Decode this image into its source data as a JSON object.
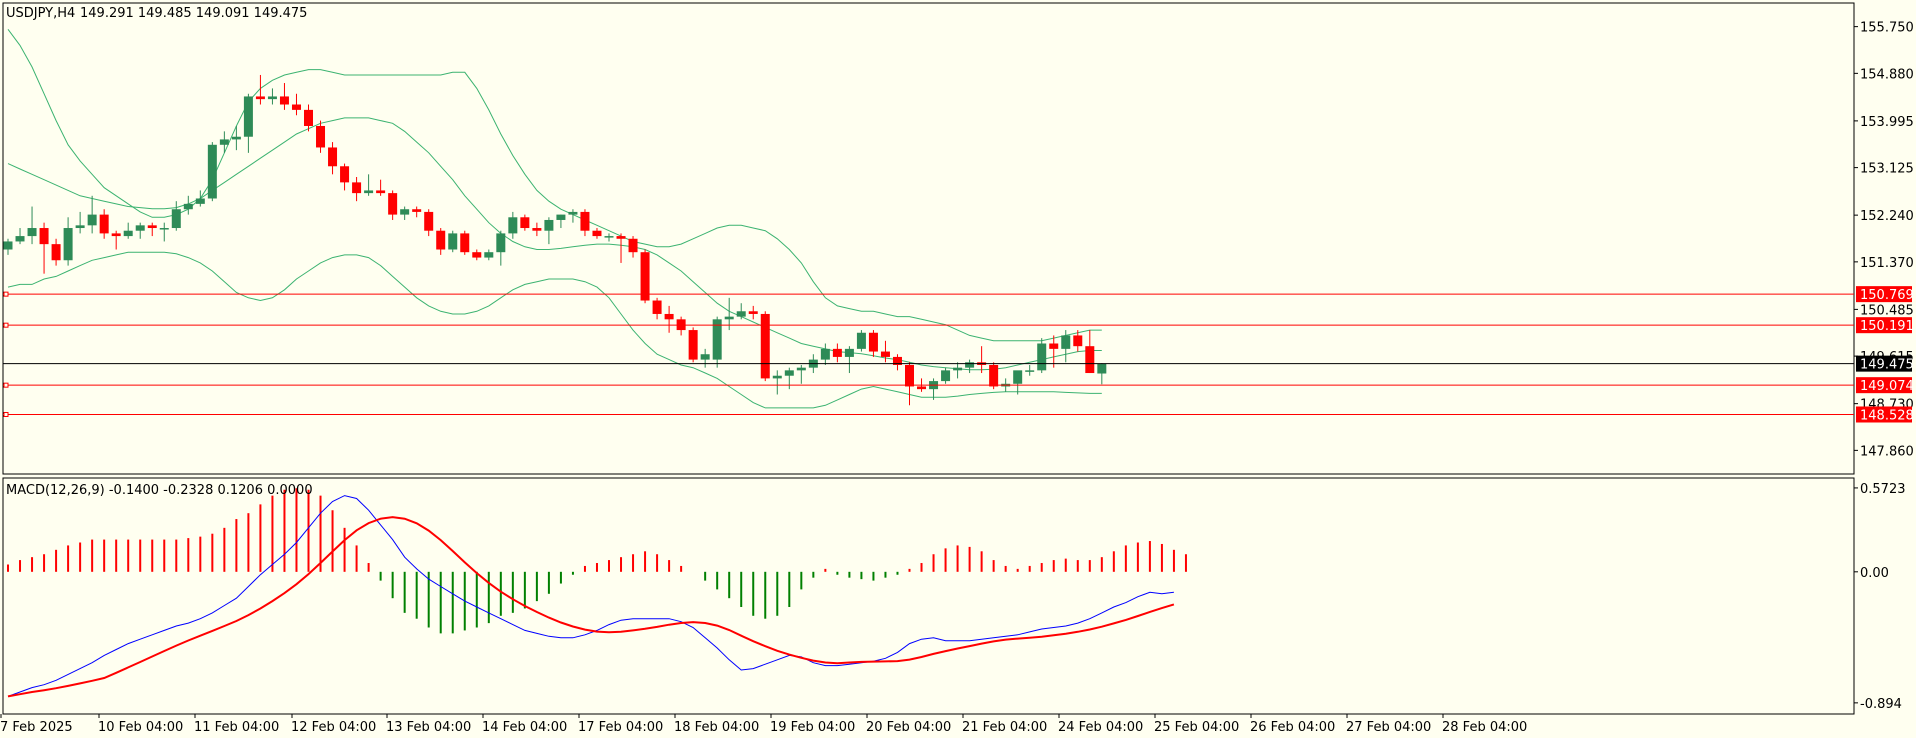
{
  "chart_data": {
    "type": "candlestick",
    "symbol_label": "USDJPY,H4",
    "ohlc_header": "149.291 149.485 149.091 149.475",
    "price_axis_ticks": [
      "155.750",
      "154.880",
      "153.995",
      "153.125",
      "152.240",
      "151.370",
      "150.485",
      "149.615",
      "148.730",
      "147.860"
    ],
    "price_axis_range": [
      147.42,
      156.19
    ],
    "current_price": {
      "label": "149.475",
      "value": 149.475
    },
    "horizontal_levels": [
      {
        "label": "150.769",
        "value": 150.769
      },
      {
        "label": "150.191",
        "value": 150.191
      },
      {
        "label": "149.074",
        "value": 149.074
      },
      {
        "label": "148.528",
        "value": 148.528
      }
    ],
    "time_axis_labels": [
      "7 Feb 2025",
      "10 Feb 04:00",
      "11 Feb 04:00",
      "12 Feb 04:00",
      "13 Feb 04:00",
      "14 Feb 04:00",
      "17 Feb 04:00",
      "18 Feb 04:00",
      "19 Feb 04:00",
      "20 Feb 04:00",
      "21 Feb 04:00",
      "24 Feb 04:00",
      "25 Feb 04:00",
      "26 Feb 04:00",
      "27 Feb 04:00",
      "28 Feb 04:00"
    ],
    "candles": [
      {
        "o": 151.6,
        "h": 151.8,
        "l": 151.5,
        "c": 151.75
      },
      {
        "o": 151.75,
        "h": 152.0,
        "l": 151.7,
        "c": 151.85
      },
      {
        "o": 151.85,
        "h": 152.4,
        "l": 151.7,
        "c": 152.0
      },
      {
        "o": 152.0,
        "h": 152.1,
        "l": 151.15,
        "c": 151.7
      },
      {
        "o": 151.7,
        "h": 151.8,
        "l": 151.3,
        "c": 151.4
      },
      {
        "o": 151.4,
        "h": 152.2,
        "l": 151.3,
        "c": 152.0
      },
      {
        "o": 152.0,
        "h": 152.3,
        "l": 151.9,
        "c": 152.05
      },
      {
        "o": 152.05,
        "h": 152.6,
        "l": 151.9,
        "c": 152.25
      },
      {
        "o": 152.25,
        "h": 152.35,
        "l": 151.8,
        "c": 151.9
      },
      {
        "o": 151.9,
        "h": 151.95,
        "l": 151.6,
        "c": 151.85
      },
      {
        "o": 151.85,
        "h": 152.1,
        "l": 151.8,
        "c": 151.95
      },
      {
        "o": 151.95,
        "h": 152.1,
        "l": 151.8,
        "c": 152.05
      },
      {
        "o": 152.05,
        "h": 152.1,
        "l": 151.85,
        "c": 152.0
      },
      {
        "o": 152.0,
        "h": 152.1,
        "l": 151.75,
        "c": 152.0
      },
      {
        "o": 152.0,
        "h": 152.5,
        "l": 151.95,
        "c": 152.35
      },
      {
        "o": 152.35,
        "h": 152.6,
        "l": 152.25,
        "c": 152.45
      },
      {
        "o": 152.45,
        "h": 152.7,
        "l": 152.4,
        "c": 152.55
      },
      {
        "o": 152.55,
        "h": 153.6,
        "l": 152.5,
        "c": 153.55
      },
      {
        "o": 153.55,
        "h": 153.8,
        "l": 153.4,
        "c": 153.65
      },
      {
        "o": 153.65,
        "h": 153.9,
        "l": 153.45,
        "c": 153.7
      },
      {
        "o": 153.7,
        "h": 154.5,
        "l": 153.4,
        "c": 154.45
      },
      {
        "o": 154.45,
        "h": 154.85,
        "l": 154.3,
        "c": 154.4
      },
      {
        "o": 154.4,
        "h": 154.6,
        "l": 154.3,
        "c": 154.45
      },
      {
        "o": 154.45,
        "h": 154.7,
        "l": 154.2,
        "c": 154.3
      },
      {
        "o": 154.3,
        "h": 154.5,
        "l": 154.1,
        "c": 154.2
      },
      {
        "o": 154.2,
        "h": 154.3,
        "l": 153.8,
        "c": 153.9
      },
      {
        "o": 153.9,
        "h": 154.0,
        "l": 153.4,
        "c": 153.5
      },
      {
        "o": 153.5,
        "h": 153.6,
        "l": 153.0,
        "c": 153.15
      },
      {
        "o": 153.15,
        "h": 153.2,
        "l": 152.7,
        "c": 152.85
      },
      {
        "o": 152.85,
        "h": 152.95,
        "l": 152.5,
        "c": 152.65
      },
      {
        "o": 152.65,
        "h": 153.0,
        "l": 152.6,
        "c": 152.7
      },
      {
        "o": 152.7,
        "h": 152.9,
        "l": 152.6,
        "c": 152.65
      },
      {
        "o": 152.65,
        "h": 152.7,
        "l": 152.15,
        "c": 152.25
      },
      {
        "o": 152.25,
        "h": 152.4,
        "l": 152.15,
        "c": 152.35
      },
      {
        "o": 152.35,
        "h": 152.4,
        "l": 152.2,
        "c": 152.3
      },
      {
        "o": 152.3,
        "h": 152.35,
        "l": 151.85,
        "c": 151.95
      },
      {
        "o": 151.95,
        "h": 152.0,
        "l": 151.5,
        "c": 151.6
      },
      {
        "o": 151.6,
        "h": 151.95,
        "l": 151.55,
        "c": 151.9
      },
      {
        "o": 151.9,
        "h": 151.95,
        "l": 151.5,
        "c": 151.55
      },
      {
        "o": 151.55,
        "h": 151.6,
        "l": 151.4,
        "c": 151.45
      },
      {
        "o": 151.45,
        "h": 151.6,
        "l": 151.4,
        "c": 151.55
      },
      {
        "o": 151.55,
        "h": 151.95,
        "l": 151.3,
        "c": 151.9
      },
      {
        "o": 151.9,
        "h": 152.3,
        "l": 151.8,
        "c": 152.2
      },
      {
        "o": 152.2,
        "h": 152.25,
        "l": 151.95,
        "c": 152.0
      },
      {
        "o": 152.0,
        "h": 152.1,
        "l": 151.85,
        "c": 151.95
      },
      {
        "o": 151.95,
        "h": 152.2,
        "l": 151.7,
        "c": 152.15
      },
      {
        "o": 152.15,
        "h": 152.25,
        "l": 152.0,
        "c": 152.25
      },
      {
        "o": 152.25,
        "h": 152.35,
        "l": 152.1,
        "c": 152.3
      },
      {
        "o": 152.3,
        "h": 152.35,
        "l": 151.85,
        "c": 151.95
      },
      {
        "o": 151.95,
        "h": 152.0,
        "l": 151.8,
        "c": 151.85
      },
      {
        "o": 151.85,
        "h": 151.9,
        "l": 151.75,
        "c": 151.85
      },
      {
        "o": 151.85,
        "h": 151.9,
        "l": 151.35,
        "c": 151.8
      },
      {
        "o": 151.8,
        "h": 151.85,
        "l": 151.45,
        "c": 151.55
      },
      {
        "o": 151.55,
        "h": 151.6,
        "l": 150.6,
        "c": 150.65
      },
      {
        "o": 150.65,
        "h": 150.7,
        "l": 150.3,
        "c": 150.4
      },
      {
        "o": 150.4,
        "h": 150.55,
        "l": 150.05,
        "c": 150.3
      },
      {
        "o": 150.3,
        "h": 150.35,
        "l": 150.0,
        "c": 150.1
      },
      {
        "o": 150.1,
        "h": 150.15,
        "l": 149.5,
        "c": 149.55
      },
      {
        "o": 149.55,
        "h": 149.75,
        "l": 149.4,
        "c": 149.65
      },
      {
        "o": 149.55,
        "h": 150.35,
        "l": 149.4,
        "c": 150.3
      },
      {
        "o": 150.3,
        "h": 150.7,
        "l": 150.1,
        "c": 150.35
      },
      {
        "o": 150.35,
        "h": 150.6,
        "l": 150.3,
        "c": 150.45
      },
      {
        "o": 150.45,
        "h": 150.55,
        "l": 150.3,
        "c": 150.4
      },
      {
        "o": 150.4,
        "h": 150.45,
        "l": 149.15,
        "c": 149.2
      },
      {
        "o": 149.2,
        "h": 149.35,
        "l": 148.9,
        "c": 149.25
      },
      {
        "o": 149.25,
        "h": 149.4,
        "l": 149.0,
        "c": 149.35
      },
      {
        "o": 149.35,
        "h": 149.45,
        "l": 149.1,
        "c": 149.4
      },
      {
        "o": 149.4,
        "h": 149.65,
        "l": 149.3,
        "c": 149.55
      },
      {
        "o": 149.55,
        "h": 149.85,
        "l": 149.45,
        "c": 149.75
      },
      {
        "o": 149.75,
        "h": 149.85,
        "l": 149.5,
        "c": 149.6
      },
      {
        "o": 149.6,
        "h": 149.8,
        "l": 149.3,
        "c": 149.75
      },
      {
        "o": 149.75,
        "h": 150.1,
        "l": 149.7,
        "c": 150.05
      },
      {
        "o": 150.05,
        "h": 150.1,
        "l": 149.6,
        "c": 149.7
      },
      {
        "o": 149.7,
        "h": 149.9,
        "l": 149.5,
        "c": 149.6
      },
      {
        "o": 149.6,
        "h": 149.65,
        "l": 149.35,
        "c": 149.45
      },
      {
        "o": 149.45,
        "h": 149.5,
        "l": 148.7,
        "c": 149.05
      },
      {
        "o": 149.05,
        "h": 149.2,
        "l": 148.95,
        "c": 149.0
      },
      {
        "o": 149.0,
        "h": 149.2,
        "l": 148.8,
        "c": 149.15
      },
      {
        "o": 149.15,
        "h": 149.4,
        "l": 149.1,
        "c": 149.35
      },
      {
        "o": 149.35,
        "h": 149.5,
        "l": 149.2,
        "c": 149.4
      },
      {
        "o": 149.4,
        "h": 149.55,
        "l": 149.3,
        "c": 149.5
      },
      {
        "o": 149.5,
        "h": 149.8,
        "l": 149.3,
        "c": 149.45
      },
      {
        "o": 149.45,
        "h": 149.5,
        "l": 149.0,
        "c": 149.05
      },
      {
        "o": 149.05,
        "h": 149.2,
        "l": 148.95,
        "c": 149.1
      },
      {
        "o": 149.1,
        "h": 149.3,
        "l": 148.9,
        "c": 149.35
      },
      {
        "o": 149.35,
        "h": 149.45,
        "l": 149.25,
        "c": 149.35
      },
      {
        "o": 149.35,
        "h": 149.95,
        "l": 149.3,
        "c": 149.85
      },
      {
        "o": 149.85,
        "h": 150.0,
        "l": 149.4,
        "c": 149.75
      },
      {
        "o": 149.75,
        "h": 150.1,
        "l": 149.5,
        "c": 150.0
      },
      {
        "o": 150.0,
        "h": 150.1,
        "l": 149.7,
        "c": 149.8
      },
      {
        "o": 149.8,
        "h": 150.1,
        "l": 149.3,
        "c": 149.3
      },
      {
        "o": 149.291,
        "h": 149.485,
        "l": 149.091,
        "c": 149.475
      }
    ],
    "bollinger": {
      "upper": [
        155.7,
        155.4,
        155.0,
        154.5,
        154.0,
        153.55,
        153.25,
        153.0,
        152.75,
        152.6,
        152.45,
        152.3,
        152.2,
        152.2,
        152.25,
        152.35,
        152.55,
        152.9,
        153.4,
        153.9,
        154.35,
        154.6,
        154.75,
        154.85,
        154.9,
        154.95,
        154.95,
        154.9,
        154.85,
        154.85,
        154.85,
        154.85,
        154.85,
        154.85,
        154.85,
        154.85,
        154.85,
        154.9,
        154.9,
        154.6,
        154.2,
        153.75,
        153.35,
        153.0,
        152.7,
        152.5,
        152.35,
        152.25,
        152.15,
        152.05,
        151.95,
        151.85,
        151.75,
        151.7,
        151.65,
        151.65,
        151.7,
        151.8,
        151.9,
        152.0,
        152.05,
        152.05,
        152.0,
        151.95,
        151.8,
        151.6,
        151.35,
        151.0,
        150.7,
        150.55,
        150.5,
        150.45,
        150.45,
        150.4,
        150.35,
        150.35,
        150.3,
        150.25,
        150.2,
        150.1,
        150.0,
        149.95,
        149.9,
        149.9,
        149.9,
        149.9,
        149.9,
        149.95,
        150.0,
        150.05,
        150.1,
        150.1
      ],
      "middle": [
        153.2,
        153.1,
        153.0,
        152.9,
        152.8,
        152.7,
        152.6,
        152.55,
        152.5,
        152.45,
        152.4,
        152.38,
        152.36,
        152.36,
        152.38,
        152.45,
        152.55,
        152.7,
        152.85,
        153.0,
        153.15,
        153.3,
        153.45,
        153.6,
        153.75,
        153.85,
        153.95,
        154.0,
        154.05,
        154.05,
        154.05,
        154.0,
        153.95,
        153.8,
        153.6,
        153.4,
        153.15,
        152.9,
        152.6,
        152.35,
        152.1,
        151.9,
        151.75,
        151.65,
        151.6,
        151.6,
        151.62,
        151.65,
        151.68,
        151.7,
        151.7,
        151.68,
        151.65,
        151.6,
        151.5,
        151.35,
        151.2,
        151.0,
        150.8,
        150.6,
        150.45,
        150.35,
        150.25,
        150.15,
        150.05,
        149.95,
        149.85,
        149.8,
        149.75,
        149.7,
        149.68,
        149.66,
        149.62,
        149.58,
        149.55,
        149.5,
        149.45,
        149.42,
        149.4,
        149.38,
        149.36,
        149.36,
        149.37,
        149.4,
        149.45,
        149.5,
        149.55,
        149.6,
        149.65,
        149.7,
        149.72,
        149.72
      ],
      "lower": [
        150.9,
        150.95,
        150.95,
        151.05,
        151.1,
        151.2,
        151.3,
        151.4,
        151.45,
        151.5,
        151.55,
        151.55,
        151.55,
        151.55,
        151.52,
        151.45,
        151.35,
        151.2,
        151.0,
        150.8,
        150.7,
        150.65,
        150.7,
        150.85,
        151.05,
        151.2,
        151.35,
        151.45,
        151.5,
        151.5,
        151.45,
        151.3,
        151.1,
        150.9,
        150.7,
        150.55,
        150.45,
        150.4,
        150.4,
        150.45,
        150.55,
        150.7,
        150.85,
        150.95,
        151.0,
        151.05,
        151.05,
        151.05,
        151.0,
        150.9,
        150.7,
        150.4,
        150.1,
        149.85,
        149.65,
        149.55,
        149.45,
        149.4,
        149.3,
        149.2,
        149.05,
        148.9,
        148.75,
        148.65,
        148.65,
        148.65,
        148.65,
        148.65,
        148.7,
        148.8,
        148.9,
        149.0,
        149.05,
        149.0,
        148.95,
        148.9,
        148.85,
        148.85,
        148.85,
        148.87,
        148.9,
        148.92,
        148.94,
        148.95,
        148.95,
        148.95,
        148.95,
        148.95,
        148.94,
        148.93,
        148.92,
        148.92
      ]
    },
    "macd": {
      "label": "MACD(12,26,9) -0.1400 -0.2328 0.1206 0.0000",
      "axis_ticks": [
        "0.5723",
        "0.00",
        "-0.894"
      ],
      "range": [
        -0.97,
        0.64
      ],
      "histogram": [
        0.05,
        0.08,
        0.1,
        0.12,
        0.15,
        0.18,
        0.2,
        0.22,
        0.22,
        0.22,
        0.22,
        0.22,
        0.22,
        0.22,
        0.22,
        0.23,
        0.24,
        0.26,
        0.3,
        0.36,
        0.4,
        0.46,
        0.52,
        0.56,
        0.57,
        0.56,
        0.52,
        0.42,
        0.3,
        0.18,
        0.06,
        -0.06,
        -0.18,
        -0.28,
        -0.32,
        -0.38,
        -0.42,
        -0.42,
        -0.4,
        -0.38,
        -0.35,
        -0.3,
        -0.28,
        -0.25,
        -0.2,
        -0.15,
        -0.08,
        -0.02,
        0.04,
        0.06,
        0.08,
        0.1,
        0.12,
        0.14,
        0.12,
        0.08,
        0.04,
        0.0,
        -0.06,
        -0.12,
        -0.18,
        -0.24,
        -0.3,
        -0.32,
        -0.3,
        -0.24,
        -0.12,
        -0.04,
        0.02,
        -0.02,
        -0.04,
        -0.05,
        -0.06,
        -0.04,
        -0.02,
        0.02,
        0.06,
        0.12,
        0.16,
        0.18,
        0.17,
        0.14,
        0.08,
        0.04,
        0.02,
        0.04,
        0.06,
        0.08,
        0.09,
        0.08,
        0.08,
        0.1,
        0.14,
        0.18,
        0.2,
        0.21,
        0.19,
        0.15,
        0.12
      ],
      "main": [
        -0.85,
        -0.82,
        -0.79,
        -0.77,
        -0.74,
        -0.7,
        -0.66,
        -0.62,
        -0.57,
        -0.53,
        -0.49,
        -0.46,
        -0.43,
        -0.4,
        -0.37,
        -0.35,
        -0.32,
        -0.28,
        -0.23,
        -0.18,
        -0.1,
        -0.02,
        0.05,
        0.12,
        0.2,
        0.3,
        0.4,
        0.48,
        0.52,
        0.5,
        0.42,
        0.32,
        0.22,
        0.1,
        0.02,
        -0.05,
        -0.1,
        -0.15,
        -0.2,
        -0.24,
        -0.28,
        -0.32,
        -0.36,
        -0.4,
        -0.42,
        -0.44,
        -0.45,
        -0.45,
        -0.43,
        -0.4,
        -0.36,
        -0.33,
        -0.32,
        -0.32,
        -0.32,
        -0.32,
        -0.34,
        -0.38,
        -0.45,
        -0.52,
        -0.6,
        -0.67,
        -0.66,
        -0.63,
        -0.6,
        -0.57,
        -0.58,
        -0.62,
        -0.64,
        -0.64,
        -0.63,
        -0.62,
        -0.61,
        -0.59,
        -0.55,
        -0.49,
        -0.46,
        -0.45,
        -0.47,
        -0.47,
        -0.47,
        -0.46,
        -0.45,
        -0.44,
        -0.43,
        -0.41,
        -0.39,
        -0.38,
        -0.37,
        -0.35,
        -0.32,
        -0.28,
        -0.24,
        -0.21,
        -0.17,
        -0.14,
        -0.15,
        -0.14
      ]
    }
  }
}
